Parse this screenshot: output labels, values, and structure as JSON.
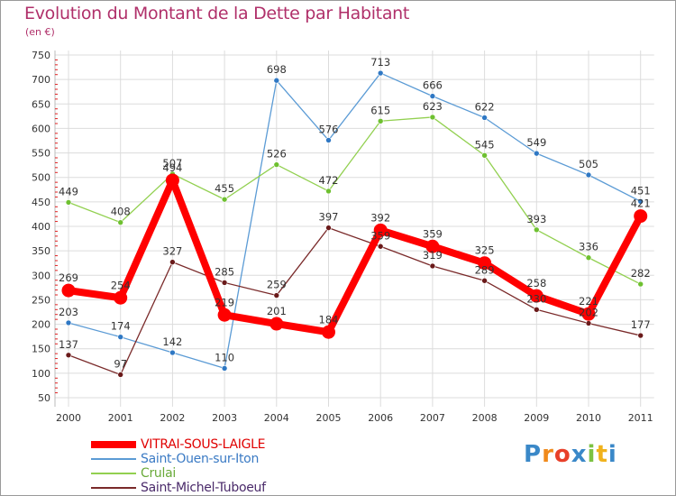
{
  "title": "Evolution du Montant de la Dette par Habitant",
  "subtitle": "(en €)",
  "brand": {
    "text": "Proxiti",
    "colors": [
      "#3a88c8",
      "#f08a1c",
      "#e8402a",
      "#3a88c8",
      "#7cc242",
      "#f0b21c",
      "#3a88c8"
    ]
  },
  "chart_data": {
    "type": "line",
    "title": "Evolution du Montant de la Dette par Habitant",
    "subtitle": "(en €)",
    "xlabel": "",
    "ylabel": "",
    "x": [
      "2000",
      "2001",
      "2002",
      "2003",
      "2004",
      "2005",
      "2006",
      "2007",
      "2008",
      "2009",
      "2010",
      "2011"
    ],
    "ylim": [
      50,
      750
    ],
    "yticks": [
      50,
      100,
      150,
      200,
      250,
      300,
      350,
      400,
      450,
      500,
      550,
      600,
      650,
      700,
      750
    ],
    "grid": true,
    "legend_position": "bottom-left",
    "series": [
      {
        "name": "Saint-Ouen-sur-Iton",
        "color": "#5b9bd5",
        "point_color": "#2f78c4",
        "emphasis": false,
        "values": [
          203,
          174,
          142,
          110,
          698,
          576,
          713,
          666,
          622,
          549,
          505,
          451
        ]
      },
      {
        "name": "Crulai",
        "color": "#92d050",
        "point_color": "#6ec030",
        "emphasis": false,
        "values": [
          449,
          408,
          507,
          455,
          526,
          472,
          615,
          623,
          545,
          393,
          336,
          282
        ]
      },
      {
        "name": "Saint-Michel-Tuboeuf",
        "color": "#7a2a2a",
        "point_color": "#6a1a1a",
        "emphasis": false,
        "values": [
          137,
          97,
          327,
          285,
          259,
          397,
          359,
          319,
          289,
          230,
          202,
          177
        ]
      },
      {
        "name": "VITRAI-SOUS-LAIGLE",
        "color": "#ff0000",
        "point_color": "#ff0000",
        "emphasis": true,
        "values": [
          269,
          254,
          494,
          219,
          201,
          184,
          392,
          359,
          325,
          258,
          221,
          421
        ]
      }
    ],
    "legend_order": [
      "VITRAI-SOUS-LAIGLE",
      "Saint-Ouen-sur-Iton",
      "Crulai",
      "Saint-Michel-Tuboeuf"
    ]
  }
}
